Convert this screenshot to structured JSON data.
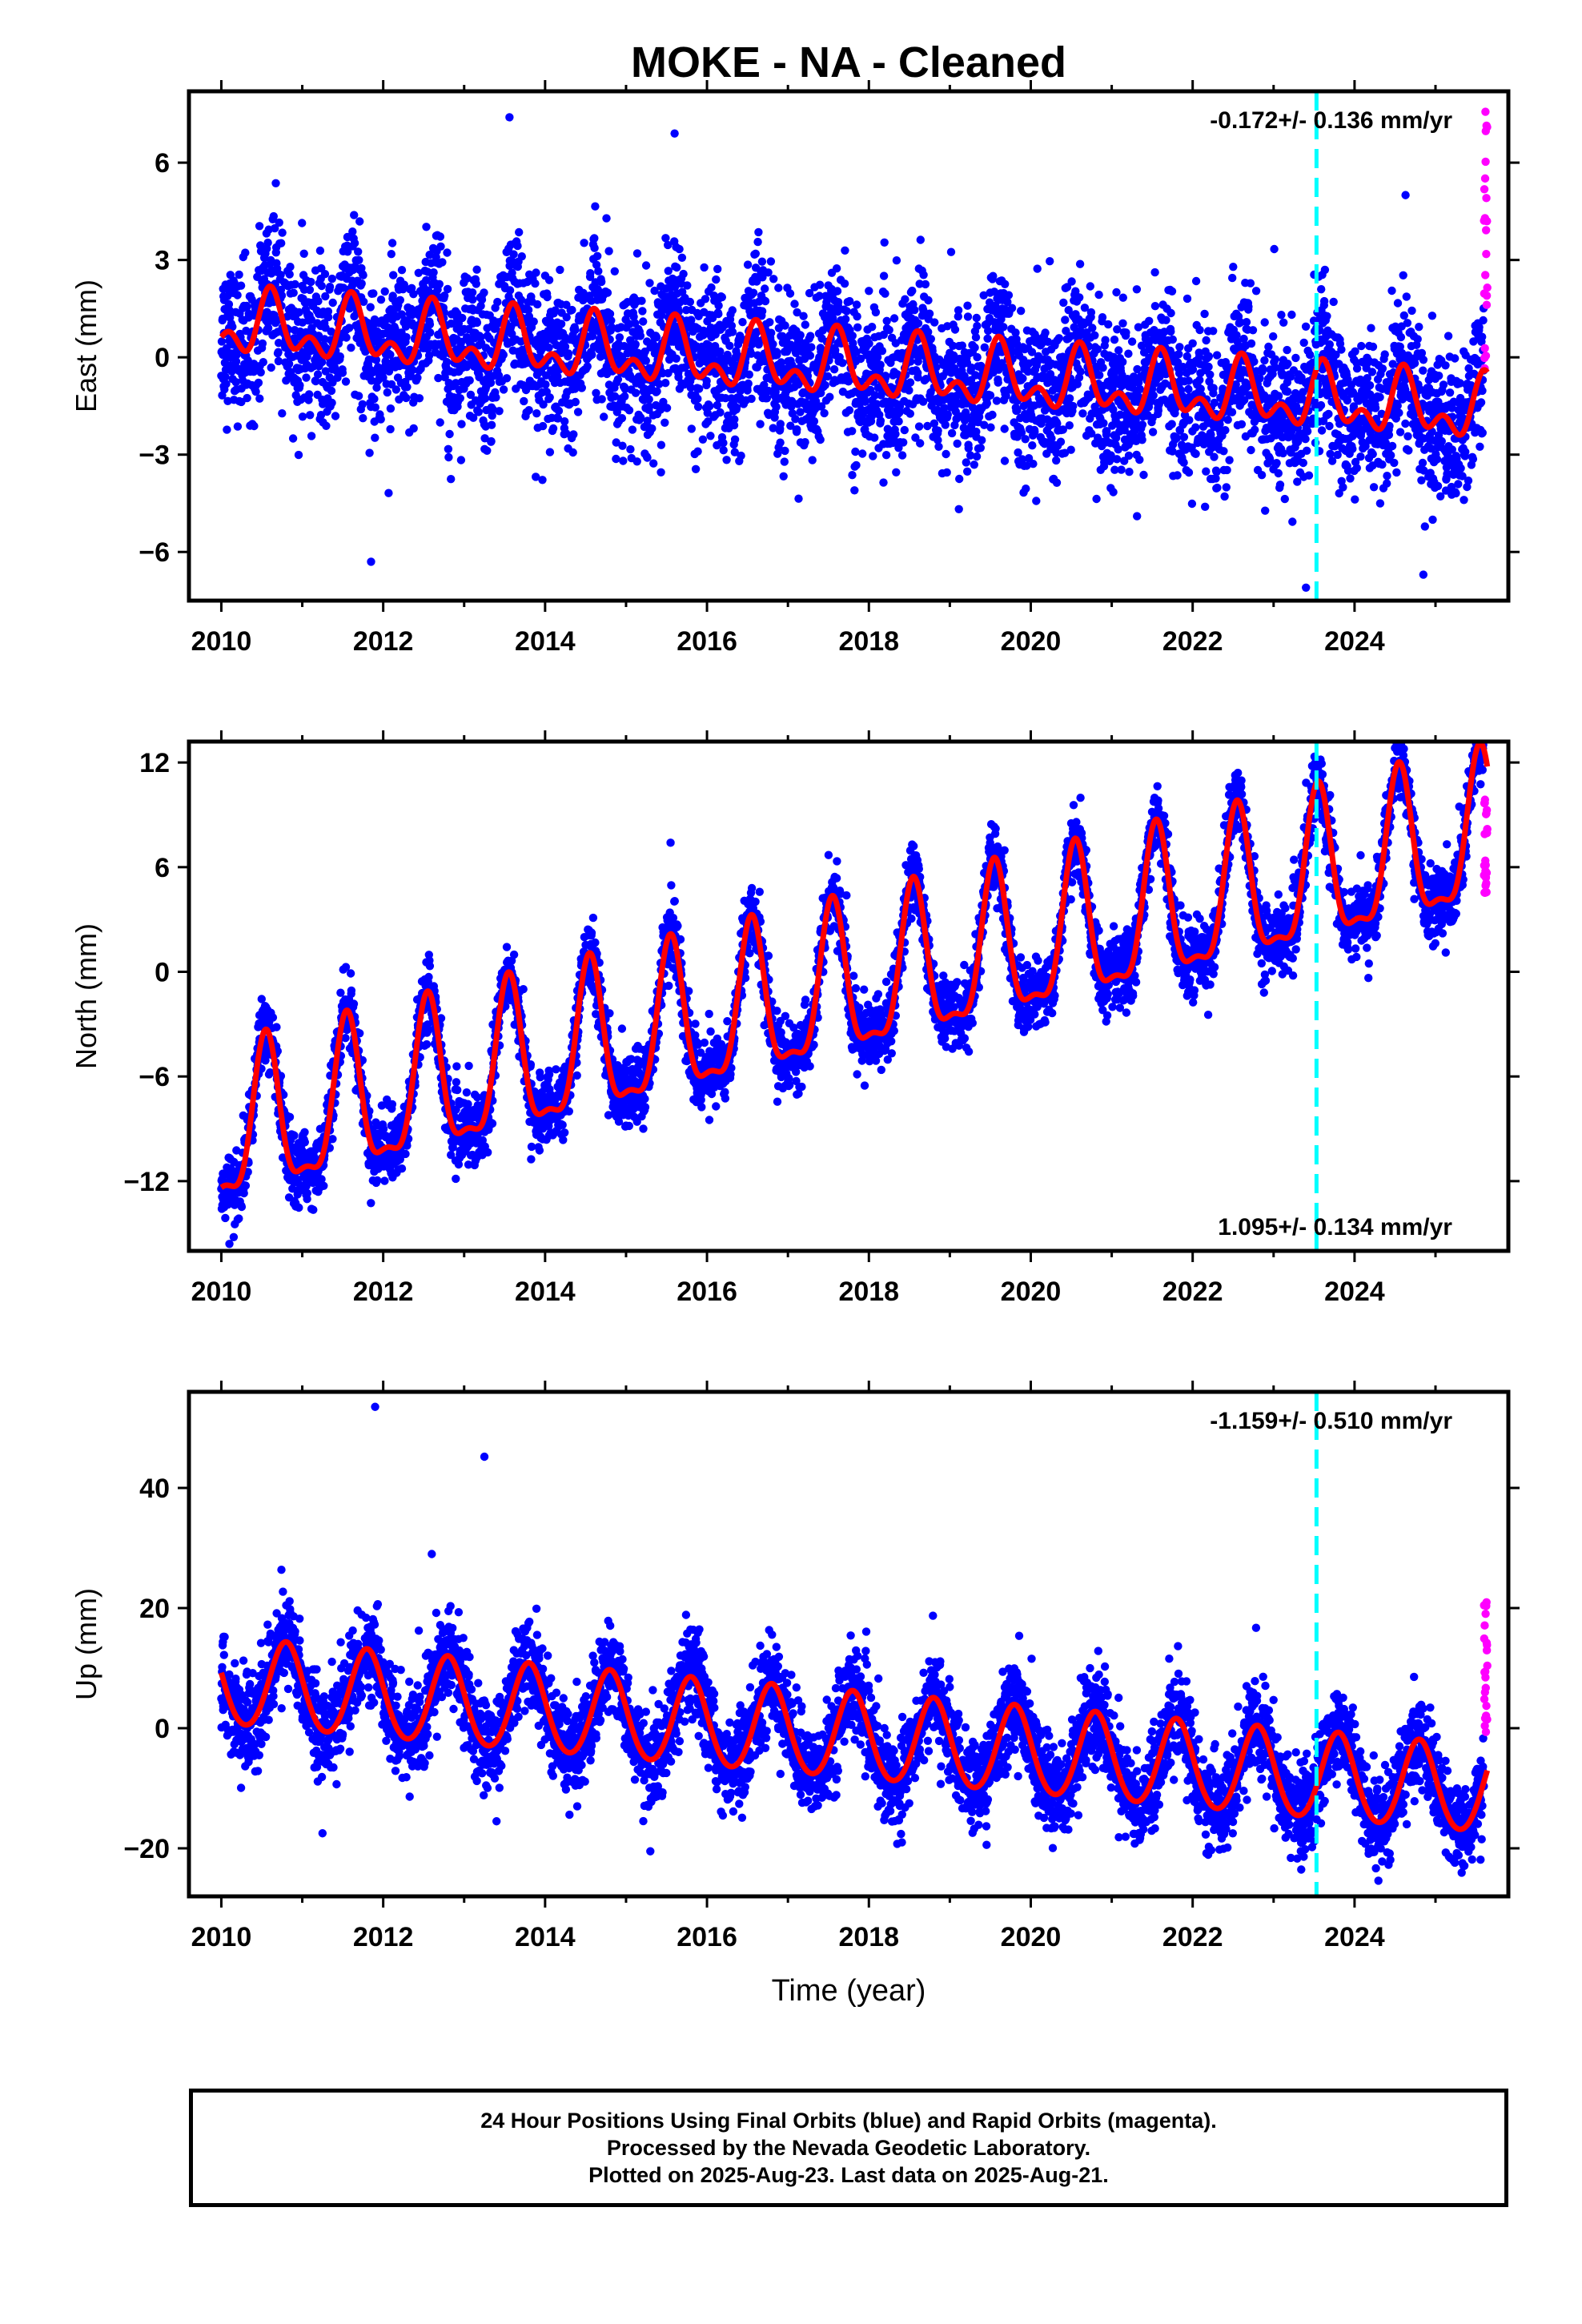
{
  "title": "MOKE  - NA - Cleaned",
  "xlabel": "Time (year)",
  "colors": {
    "final_orbits": "#0000ff",
    "rapid_orbits": "#ff00ff",
    "model": "#ff0000",
    "event_line": "#00ffff",
    "frame": "#000000"
  },
  "footer": {
    "line1": "24 Hour Positions Using Final Orbits (blue) and Rapid Orbits (magenta).",
    "line2": "Processed by the Nevada Geodetic Laboratory.",
    "line3": "Plotted on 2025-Aug-23. Last data on 2025-Aug-21."
  },
  "chart_data": [
    {
      "type": "scatter",
      "component": "east",
      "ylabel": "East (mm)",
      "velocity_label": "-0.172+/- 0.136 mm/yr",
      "velocity_label_position": "top-right",
      "xlim": [
        2009.6,
        2025.9
      ],
      "ylim": [
        -7.5,
        8.2
      ],
      "xticks": [
        2010,
        2012,
        2014,
        2016,
        2018,
        2020,
        2022,
        2024
      ],
      "yticks": [
        -6,
        -3,
        0,
        3,
        6
      ],
      "event_line_x": 2023.53,
      "model": {
        "offset": 1.0,
        "rate_mm_per_yr": -0.172,
        "annual_amp": 0.75,
        "annual_phase_year": 0.62,
        "semiannual_amp": 0.55,
        "semiannual_phase_year": 0.1,
        "noise_sd": 1.15
      },
      "rapid_orbits": {
        "x_start": 2025.6,
        "x_end": 2025.64,
        "y_min": -0.5,
        "y_max": 8.0
      },
      "outliers": [
        [
          2013.56,
          7.4
        ],
        [
          2015.6,
          6.9
        ],
        [
          2011.85,
          -6.3
        ],
        [
          2024.63,
          5.0
        ],
        [
          2024.85,
          -6.7
        ],
        [
          2023.4,
          -7.1
        ]
      ]
    },
    {
      "type": "scatter",
      "component": "north",
      "ylabel": "North (mm)",
      "velocity_label": "1.095+/- 0.134 mm/yr",
      "velocity_label_position": "bottom-right",
      "xlim": [
        2009.6,
        2025.9
      ],
      "ylim": [
        -16.0,
        13.2
      ],
      "xticks": [
        2010,
        2012,
        2014,
        2016,
        2018,
        2020,
        2022,
        2024
      ],
      "yticks": [
        -12,
        -6,
        0,
        6,
        12
      ],
      "event_line_x": 2023.53,
      "model": {
        "offset": -9.5,
        "rate_mm_per_yr": 1.095,
        "annual_amp": 4.2,
        "annual_phase_year": 0.55,
        "semiannual_amp": 1.4,
        "semiannual_phase_year": 0.55,
        "noise_sd": 1.0
      },
      "rapid_orbits": {
        "x_start": 2025.6,
        "x_end": 2025.64,
        "y_min": 4.5,
        "y_max": 10.0
      },
      "outliers": [
        [
          2015.55,
          7.4
        ],
        [
          2024.55,
          12.8
        ],
        [
          2010.1,
          -15.6
        ]
      ]
    },
    {
      "type": "scatter",
      "component": "up",
      "ylabel": "Up (mm)",
      "velocity_label": "-1.159+/- 0.510 mm/yr",
      "velocity_label_position": "top-right",
      "xlim": [
        2009.6,
        2025.9
      ],
      "ylim": [
        -28.0,
        56.0
      ],
      "xticks": [
        2010,
        2012,
        2014,
        2016,
        2018,
        2020,
        2022,
        2024
      ],
      "yticks": [
        -20,
        0,
        20,
        40
      ],
      "event_line_x": 2023.53,
      "model": {
        "offset": 7.5,
        "rate_mm_per_yr": -1.159,
        "annual_amp": 7.2,
        "annual_phase_year": 0.8,
        "semiannual_amp": 0.6,
        "semiannual_phase_year": 0.3,
        "noise_sd": 3.8
      },
      "rapid_orbits": {
        "x_start": 2025.6,
        "x_end": 2025.64,
        "y_min": -1.0,
        "y_max": 21.0
      },
      "outliers": [
        [
          2011.9,
          53.5
        ],
        [
          2013.25,
          45.2
        ],
        [
          2012.6,
          29.0
        ],
        [
          2015.3,
          -20.5
        ],
        [
          2011.25,
          -17.5
        ],
        [
          2013.4,
          -15.5
        ]
      ]
    }
  ]
}
